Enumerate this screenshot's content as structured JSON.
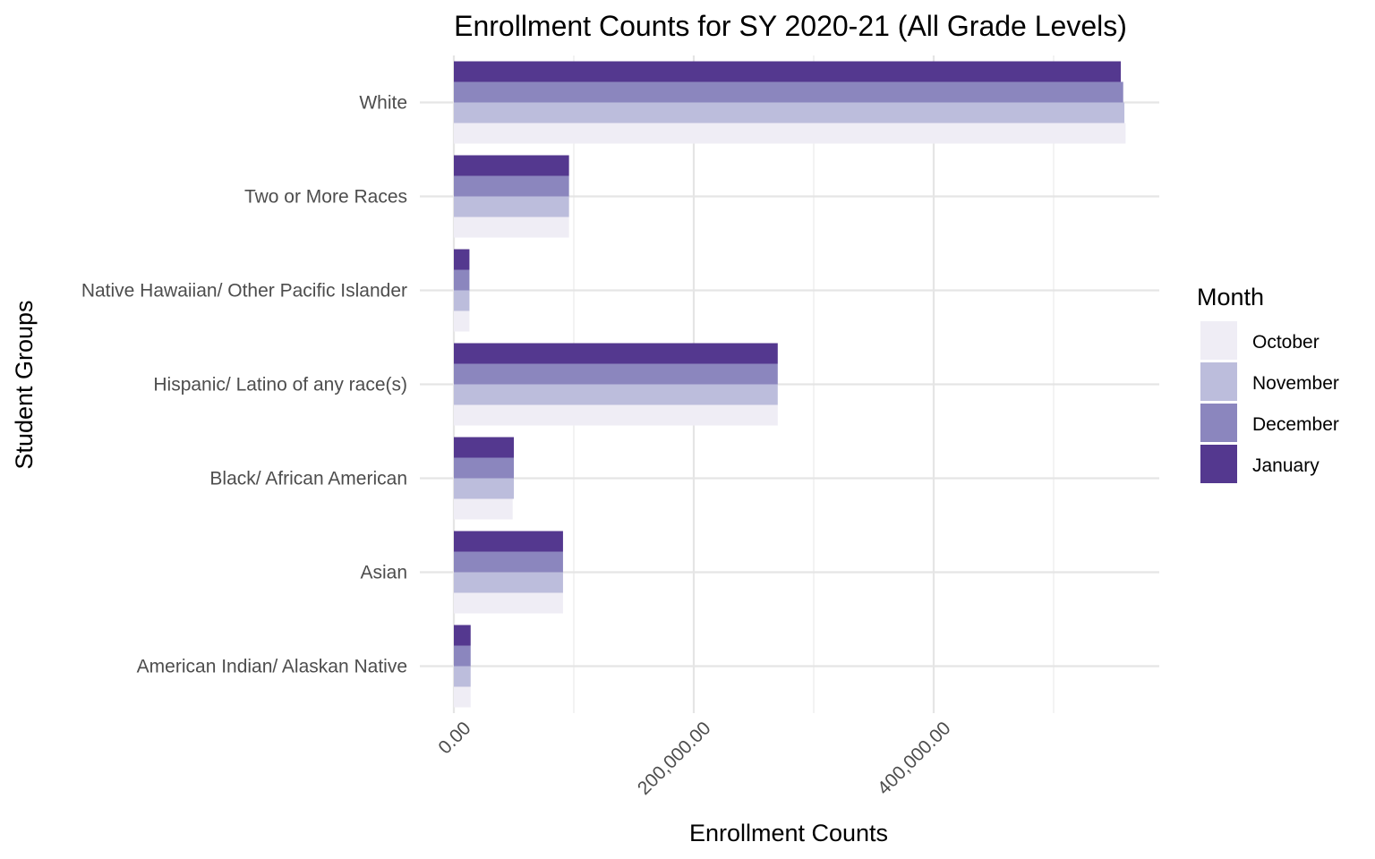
{
  "chart_data": {
    "type": "bar",
    "orientation": "horizontal",
    "title": "Enrollment Counts for SY 2020-21 (All Grade Levels)",
    "xlabel": "Enrollment Counts",
    "ylabel": "Student Groups",
    "xlim": [
      -10000,
      590000
    ],
    "x_ticks": [
      0,
      200000,
      400000
    ],
    "x_tick_labels": [
      "0.00",
      "200,000.00",
      "400,000.00"
    ],
    "grid": true,
    "legend_position": "right",
    "legend_title": "Month",
    "categories": [
      "American Indian/ Alaskan Native",
      "Asian",
      "Black/ African American",
      "Hispanic/ Latino of any race(s)",
      "Native Hawaiian/ Other Pacific Islander",
      "Two or More Races",
      "White"
    ],
    "series": [
      {
        "name": "October",
        "color": "#efedf5",
        "values": [
          14000,
          91000,
          49000,
          270000,
          13000,
          96000,
          560000
        ]
      },
      {
        "name": "November",
        "color": "#bcbddc",
        "values": [
          14000,
          91000,
          50000,
          270000,
          13000,
          96000,
          559000
        ]
      },
      {
        "name": "December",
        "color": "#8b86be",
        "values": [
          14000,
          91000,
          50000,
          270000,
          13000,
          96000,
          558000
        ]
      },
      {
        "name": "January",
        "color": "#54388f",
        "values": [
          14000,
          91000,
          50000,
          270000,
          13000,
          96000,
          556000
        ]
      }
    ]
  }
}
